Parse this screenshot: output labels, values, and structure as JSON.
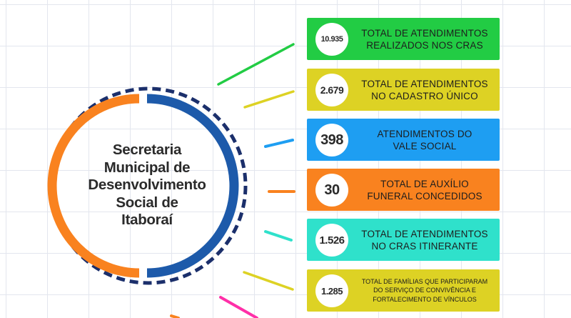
{
  "center": {
    "lines": [
      "Secretaria",
      "Municipal de",
      "Desenvolvimento",
      "Social de",
      "Itaboraí"
    ]
  },
  "colors": {
    "green": "#22cc44",
    "yellow": "#ddd224",
    "blue": "#1e9ef2",
    "orange": "#f9821f",
    "teal": "#2fe1cb",
    "pink": "#ff2fa8",
    "dark_blue": "#1d5aaa",
    "navy": "#1b2f6b"
  },
  "cards": [
    {
      "number": "10.935",
      "lines": [
        "TOTAL DE ATENDIMENTOS",
        "REALIZADOS NOS CRAS"
      ],
      "color": "#22cc44"
    },
    {
      "number": "2.679",
      "lines": [
        "TOTAL DE ATENDIMENTOS",
        "NO CADASTRO ÚNICO"
      ],
      "color": "#ddd224"
    },
    {
      "number": "398",
      "lines": [
        "ATENDIMENTOS DO",
        "VALE SOCIAL"
      ],
      "color": "#1e9ef2"
    },
    {
      "number": "30",
      "lines": [
        "TOTAL DE AUXÍLIO",
        "FUNERAL CONCEDIDOS"
      ],
      "color": "#f9821f"
    },
    {
      "number": "1.526",
      "lines": [
        "TOTAL DE ATENDIMENTOS",
        "NO CRAS ITINERANTE"
      ],
      "color": "#2fe1cb"
    },
    {
      "number": "1.285",
      "lines": [
        "TOTAL DE FAMÍLIAS QUE PARTICIPARAM",
        "DO SERVIÇO DE CONVIVÊNCIA E",
        "FORTALECIMENTO DE VÍNCULOS"
      ],
      "color": "#ddd224"
    }
  ]
}
